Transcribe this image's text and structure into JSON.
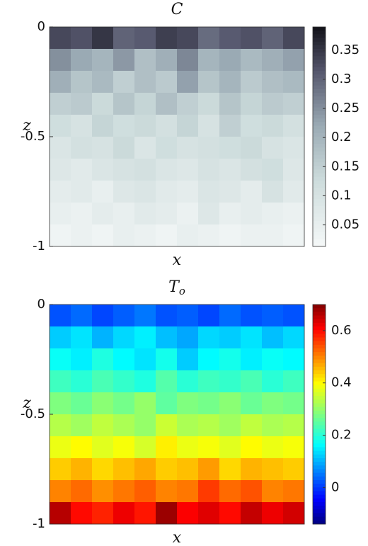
{
  "chart_data": [
    {
      "type": "heatmap",
      "title": "C",
      "xlabel": "x",
      "ylabel": "z",
      "ylim": [
        -1,
        0
      ],
      "yticks": [
        0,
        -0.5,
        -1
      ],
      "colormap": "bone_r",
      "clim": [
        0.013,
        0.39
      ],
      "cticks": [
        0.05,
        0.1,
        0.15,
        0.2,
        0.25,
        0.3,
        0.35
      ],
      "values": [
        [
          0.33,
          0.32,
          0.35,
          0.3,
          0.31,
          0.34,
          0.33,
          0.29,
          0.31,
          0.32,
          0.3,
          0.33
        ],
        [
          0.25,
          0.22,
          0.2,
          0.24,
          0.18,
          0.21,
          0.26,
          0.2,
          0.22,
          0.19,
          0.21,
          0.23
        ],
        [
          0.21,
          0.17,
          0.19,
          0.15,
          0.18,
          0.16,
          0.23,
          0.17,
          0.2,
          0.16,
          0.18,
          0.19
        ],
        [
          0.15,
          0.16,
          0.13,
          0.17,
          0.14,
          0.18,
          0.15,
          0.13,
          0.17,
          0.14,
          0.16,
          0.15
        ],
        [
          0.12,
          0.1,
          0.14,
          0.12,
          0.13,
          0.11,
          0.14,
          0.1,
          0.15,
          0.12,
          0.13,
          0.11
        ],
        [
          0.09,
          0.11,
          0.1,
          0.13,
          0.09,
          0.12,
          0.1,
          0.11,
          0.12,
          0.13,
          0.1,
          0.09
        ],
        [
          0.08,
          0.07,
          0.09,
          0.1,
          0.11,
          0.09,
          0.08,
          0.1,
          0.09,
          0.11,
          0.12,
          0.08
        ],
        [
          0.06,
          0.07,
          0.05,
          0.08,
          0.09,
          0.07,
          0.06,
          0.09,
          0.08,
          0.06,
          0.1,
          0.07
        ],
        [
          0.05,
          0.04,
          0.06,
          0.05,
          0.07,
          0.06,
          0.04,
          0.08,
          0.05,
          0.06,
          0.05,
          0.04
        ],
        [
          0.03,
          0.04,
          0.03,
          0.05,
          0.04,
          0.03,
          0.05,
          0.04,
          0.03,
          0.04,
          0.04,
          0.03
        ]
      ]
    },
    {
      "type": "heatmap",
      "title": "T",
      "title_subscript": "o",
      "xlabel": "x",
      "ylabel": "z",
      "ylim": [
        -1,
        0
      ],
      "yticks": [
        0,
        -0.5,
        -1
      ],
      "colormap": "jet",
      "clim": [
        -0.14,
        0.7
      ],
      "cticks": [
        0,
        0.2,
        0.4,
        0.6
      ],
      "values": [
        [
          0.02,
          0.04,
          0.01,
          0.03,
          0.05,
          0.02,
          0.03,
          0.01,
          0.04,
          0.02,
          0.03,
          0.02
        ],
        [
          0.12,
          0.14,
          0.1,
          0.13,
          0.15,
          0.11,
          0.09,
          0.13,
          0.12,
          0.14,
          0.11,
          0.13
        ],
        [
          0.17,
          0.15,
          0.19,
          0.16,
          0.14,
          0.18,
          0.12,
          0.16,
          0.18,
          0.15,
          0.17,
          0.16
        ],
        [
          0.22,
          0.2,
          0.23,
          0.21,
          0.19,
          0.24,
          0.2,
          0.22,
          0.21,
          0.23,
          0.2,
          0.22
        ],
        [
          0.28,
          0.26,
          0.29,
          0.27,
          0.3,
          0.25,
          0.28,
          0.27,
          0.29,
          0.26,
          0.28,
          0.27
        ],
        [
          0.33,
          0.31,
          0.34,
          0.32,
          0.3,
          0.35,
          0.32,
          0.33,
          0.31,
          0.34,
          0.32,
          0.33
        ],
        [
          0.38,
          0.4,
          0.37,
          0.39,
          0.36,
          0.41,
          0.38,
          0.39,
          0.37,
          0.4,
          0.38,
          0.39
        ],
        [
          0.44,
          0.46,
          0.43,
          0.45,
          0.47,
          0.44,
          0.45,
          0.48,
          0.43,
          0.46,
          0.45,
          0.44
        ],
        [
          0.5,
          0.52,
          0.49,
          0.51,
          0.53,
          0.5,
          0.51,
          0.56,
          0.52,
          0.54,
          0.5,
          0.51
        ],
        [
          0.66,
          0.6,
          0.58,
          0.62,
          0.59,
          0.68,
          0.61,
          0.63,
          0.6,
          0.65,
          0.62,
          0.64
        ]
      ]
    }
  ]
}
